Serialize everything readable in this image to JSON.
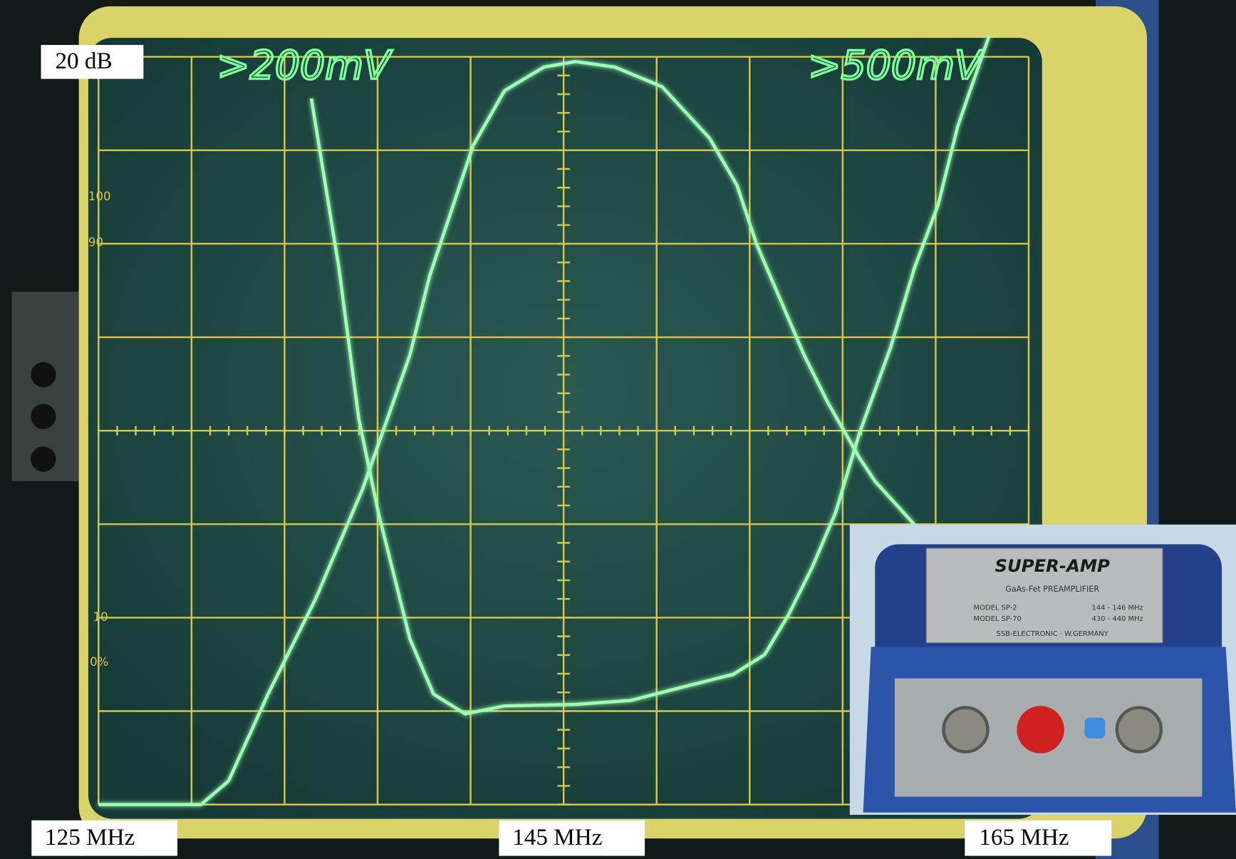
{
  "labels": {
    "level": "20 dB",
    "freq_left": "125 MHz",
    "freq_center": "145 MHz",
    "freq_right": "165 MHz"
  },
  "screen": {
    "channel_1": ">200mV",
    "channel_2": ">500mV",
    "scale": [
      "100",
      "90",
      "10",
      "0%"
    ]
  },
  "device": {
    "brand": "SUPER-AMP",
    "subtitle": "GaAs-Fet PREAMPLIFIER",
    "models": [
      [
        "MODEL SP-2",
        "144 - 146 MHz"
      ],
      [
        "MODEL SP-70",
        "430 - 440 MHz"
      ]
    ],
    "maker": "SSB-ELECTRONIC · W.GERMANY"
  }
}
